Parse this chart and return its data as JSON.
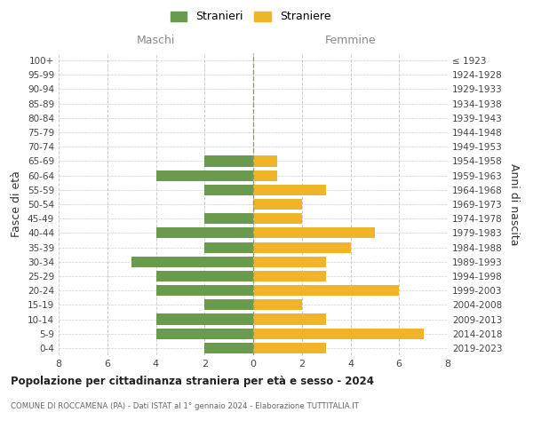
{
  "age_groups": [
    "100+",
    "95-99",
    "90-94",
    "85-89",
    "80-84",
    "75-79",
    "70-74",
    "65-69",
    "60-64",
    "55-59",
    "50-54",
    "45-49",
    "40-44",
    "35-39",
    "30-34",
    "25-29",
    "20-24",
    "15-19",
    "10-14",
    "5-9",
    "0-4"
  ],
  "birth_years": [
    "≤ 1923",
    "1924-1928",
    "1929-1933",
    "1934-1938",
    "1939-1943",
    "1944-1948",
    "1949-1953",
    "1954-1958",
    "1959-1963",
    "1964-1968",
    "1969-1973",
    "1974-1978",
    "1979-1983",
    "1984-1988",
    "1989-1993",
    "1994-1998",
    "1999-2003",
    "2004-2008",
    "2009-2013",
    "2014-2018",
    "2019-2023"
  ],
  "males": [
    0,
    0,
    0,
    0,
    0,
    0,
    0,
    2,
    4,
    2,
    0,
    2,
    4,
    2,
    5,
    4,
    4,
    2,
    4,
    4,
    2
  ],
  "females": [
    0,
    0,
    0,
    0,
    0,
    0,
    0,
    1,
    1,
    3,
    2,
    2,
    5,
    4,
    3,
    3,
    6,
    2,
    3,
    7,
    3
  ],
  "male_color": "#6a9a4e",
  "female_color": "#f0b429",
  "bar_height": 0.75,
  "xlim": 8,
  "title": "Popolazione per cittadinanza straniera per età e sesso - 2024",
  "subtitle": "COMUNE DI ROCCAMENA (PA) - Dati ISTAT al 1° gennaio 2024 - Elaborazione TUTTITALIA.IT",
  "ylabel_left": "Fasce di età",
  "ylabel_right": "Anni di nascita",
  "xlabel_left": "Maschi",
  "xlabel_right": "Femmine",
  "legend_stranieri": "Stranieri",
  "legend_straniere": "Straniere",
  "bg_color": "#ffffff",
  "grid_color": "#cccccc",
  "label_color": "#888888"
}
